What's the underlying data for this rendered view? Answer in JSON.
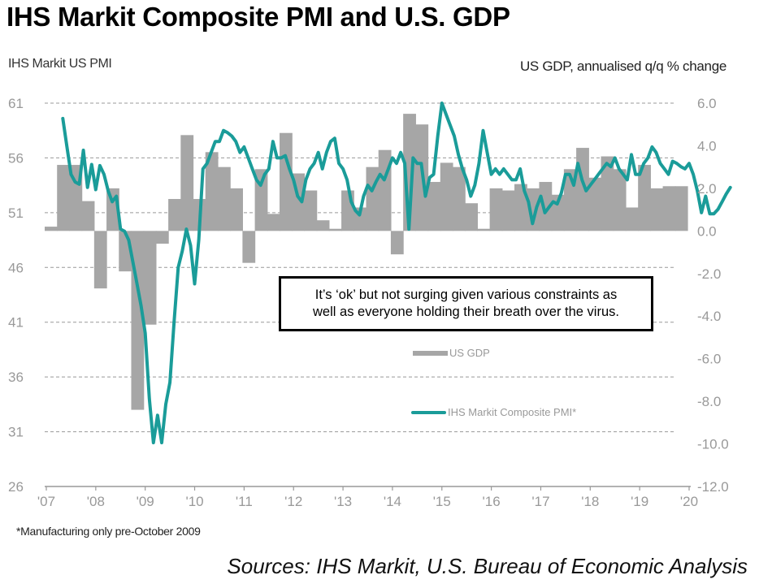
{
  "title": "IHS Markit Composite PMI and U.S. GDP",
  "left_axis_title": "IHS Markit US PMI",
  "right_axis_title": "US GDP, annualised q/q % change",
  "footnote": "*Manufacturing only pre-October 2009",
  "sources": "Sources: IHS Markit, U.S. Bureau of Economic Analysis",
  "annotation": {
    "line1": "It’s ‘ok’ but not surging given various constraints as",
    "line2": "well as everyone holding their breath over the virus."
  },
  "colors": {
    "pmi_line": "#1a9c99",
    "gdp_bar": "#a6a6a6",
    "grid": "#999999",
    "tick_text": "#999999"
  },
  "chart_data": {
    "type": "bar+line",
    "title": "IHS Markit Composite PMI and U.S. GDP",
    "xlabel": "",
    "ylabel_left": "IHS Markit US PMI",
    "ylabel_right": "US GDP, annualised q/q % change",
    "x_tick_labels": [
      "'07",
      "'08",
      "'09",
      "'10",
      "'11",
      "'12",
      "'13",
      "'14",
      "'15",
      "'16",
      "'17",
      "'18",
      "'19",
      "'20"
    ],
    "x_range": [
      2007.0,
      2020.0
    ],
    "y_left_ticks": [
      "61",
      "56",
      "51",
      "46",
      "41",
      "36",
      "31",
      "26"
    ],
    "y_left_range": [
      26,
      61
    ],
    "y_right_ticks": [
      "6.0",
      "4.0",
      "2.0",
      "0.0",
      "-2.0",
      "-4.0",
      "-6.0",
      "-8.0",
      "-10.0",
      "-12.0"
    ],
    "y_right_range": [
      -12,
      6
    ],
    "grid": "horizontal dashed",
    "legend": {
      "placement": "center",
      "entries": [
        {
          "label": "US GDP",
          "type": "bar"
        },
        {
          "label": "IHS Markit Composite PMI*",
          "type": "line"
        }
      ]
    },
    "series": [
      {
        "name": "US GDP",
        "axis": "right",
        "type": "bar",
        "frequency": "quarterly",
        "start": "2007Q1",
        "values": [
          0.2,
          3.1,
          3.1,
          1.4,
          -2.7,
          2.0,
          -1.9,
          -8.4,
          -4.4,
          -0.6,
          1.5,
          4.5,
          1.5,
          3.7,
          3.0,
          2.0,
          -1.5,
          2.9,
          0.8,
          4.6,
          2.7,
          1.9,
          0.5,
          0.1,
          1.9,
          1.1,
          3.0,
          3.8,
          -1.1,
          5.5,
          5.0,
          2.3,
          3.2,
          3.0,
          1.3,
          0.1,
          2.0,
          1.9,
          2.2,
          2.0,
          2.3,
          1.7,
          2.9,
          3.9,
          2.5,
          3.5,
          2.9,
          1.1,
          3.1,
          2.0,
          2.1,
          2.1
        ]
      },
      {
        "name": "IHS Markit Composite PMI*",
        "axis": "left",
        "type": "line",
        "frequency": "monthly",
        "start": "2007-05",
        "values": [
          59.6,
          57.0,
          54.5,
          53.8,
          53.6,
          56.7,
          53.3,
          55.4,
          53.1,
          55.3,
          54.5,
          53.0,
          52.0,
          52.5,
          49.5,
          49.3,
          48.5,
          46.5,
          44.5,
          42.5,
          40.0,
          34.0,
          30.0,
          32.5,
          30.0,
          33.5,
          35.5,
          41.0,
          46.0,
          47.5,
          49.5,
          48.0,
          44.5,
          48.5,
          55.0,
          55.5,
          56.5,
          57.5,
          57.5,
          58.5,
          58.3,
          58.0,
          57.5,
          56.5,
          57.0,
          56.0,
          55.0,
          54.0,
          53.5,
          54.5,
          55.0,
          57.5,
          56.0,
          56.0,
          56.2,
          55.0,
          54.0,
          52.5,
          52.0,
          54.0,
          55.0,
          55.5,
          56.5,
          55.0,
          56.5,
          57.5,
          57.8,
          55.5,
          55.0,
          54.0,
          52.0,
          51.2,
          50.8,
          52.5,
          53.5,
          53.0,
          53.8,
          54.5,
          54.0,
          55.0,
          56.0,
          55.5,
          56.5,
          55.5,
          49.5,
          56.0,
          55.5,
          55.5,
          52.5,
          54.2,
          54.5,
          58.0,
          61.0,
          60.0,
          59.0,
          58.0,
          56.3,
          55.0,
          54.0,
          52.5,
          53.5,
          55.5,
          58.5,
          56.5,
          54.5,
          55.0,
          54.5,
          55.0,
          54.5,
          54.0,
          54.0,
          55.0,
          53.0,
          52.0,
          50.0,
          51.5,
          52.5,
          51.0,
          51.5,
          52.0,
          51.8,
          52.8,
          54.5,
          54.5,
          53.5,
          55.5,
          54.0,
          53.0,
          53.5,
          54.0,
          54.5,
          55.0,
          55.5,
          55.2,
          56.0,
          55.0,
          54.5,
          54.0,
          56.3,
          54.5,
          54.5,
          55.5,
          56.0,
          57.0,
          56.5,
          55.5,
          55.0,
          54.5,
          55.7,
          55.5,
          55.2,
          55.0,
          55.5,
          54.5,
          53.0,
          51.0,
          52.5,
          50.9,
          50.9,
          51.3,
          52.0,
          52.7,
          53.3
        ]
      }
    ]
  }
}
